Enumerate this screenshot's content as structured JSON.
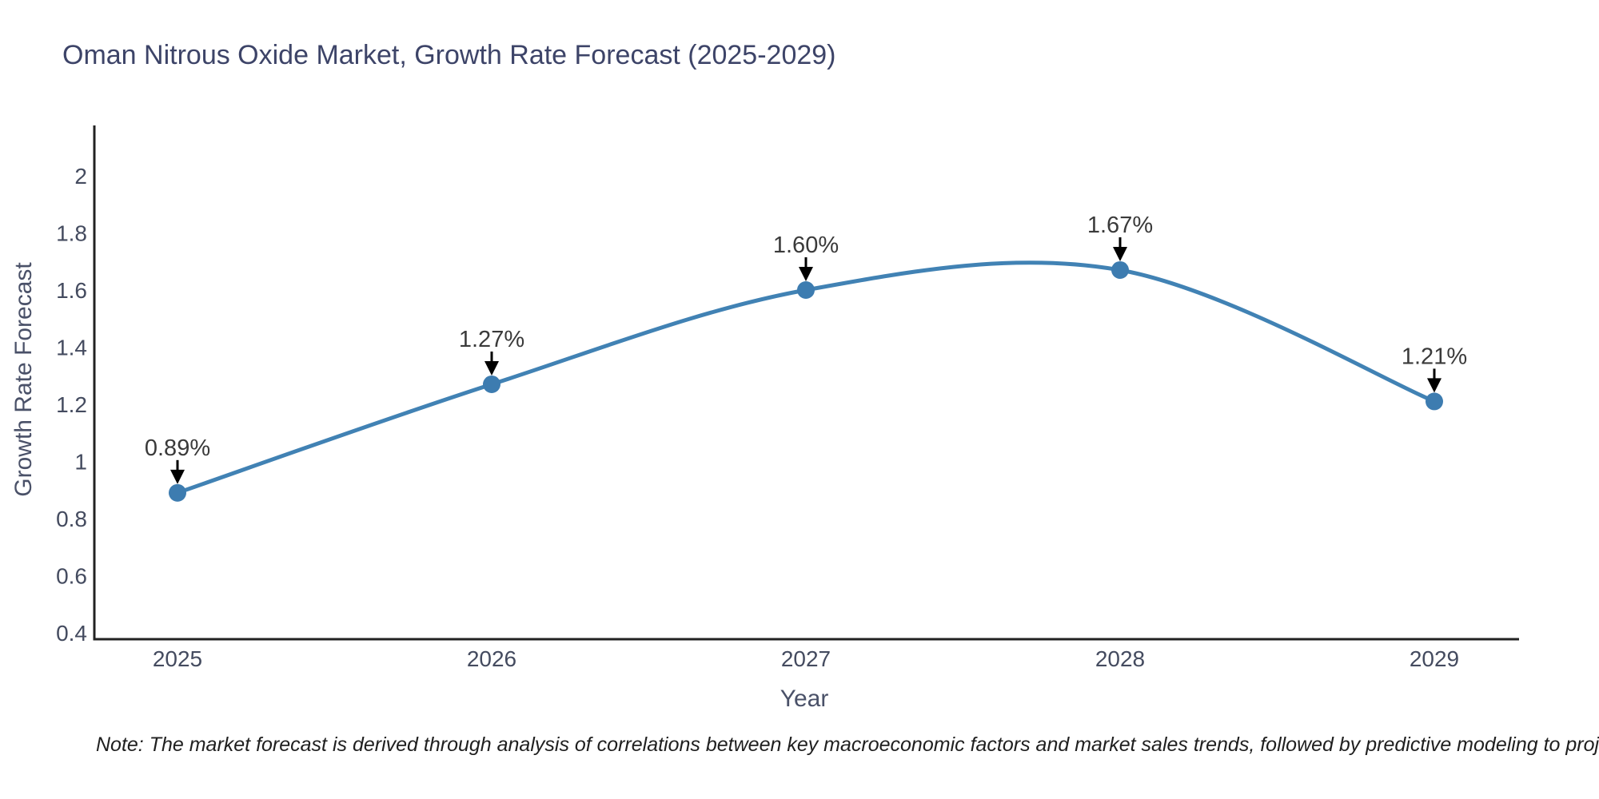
{
  "chart_data": {
    "type": "line",
    "title": "Oman Nitrous Oxide Market, Growth Rate Forecast (2025-2029)",
    "xlabel": "Year",
    "ylabel": "Growth Rate Forecast",
    "categories": [
      "2025",
      "2026",
      "2027",
      "2028",
      "2029"
    ],
    "series": [
      {
        "name": "Growth Rate Forecast",
        "values": [
          0.89,
          1.27,
          1.6,
          1.67,
          1.21
        ]
      }
    ],
    "point_labels": [
      "0.89%",
      "1.27%",
      "1.60%",
      "1.67%",
      "1.21%"
    ],
    "ytick_labels": [
      "2",
      "1.8",
      "1.6",
      "1.4",
      "1.2",
      "1",
      "0.8",
      "0.6",
      "0.4"
    ],
    "ylim": [
      0.4,
      2
    ],
    "line_shape": "spline",
    "grid": false,
    "legend": "none",
    "colors": {
      "line": "#4182b4",
      "marker": "#3d7cb0",
      "axis": "#222222",
      "tick_text": "#444b5f",
      "title_text": "#3d4468",
      "annotation_text": "#3a3a3a",
      "arrow": "#000000"
    }
  },
  "note": {
    "text": "Note: The market forecast is derived through analysis of correlations between key macroeconomic factors and market sales trends, followed by predictive modeling to project future sales"
  }
}
